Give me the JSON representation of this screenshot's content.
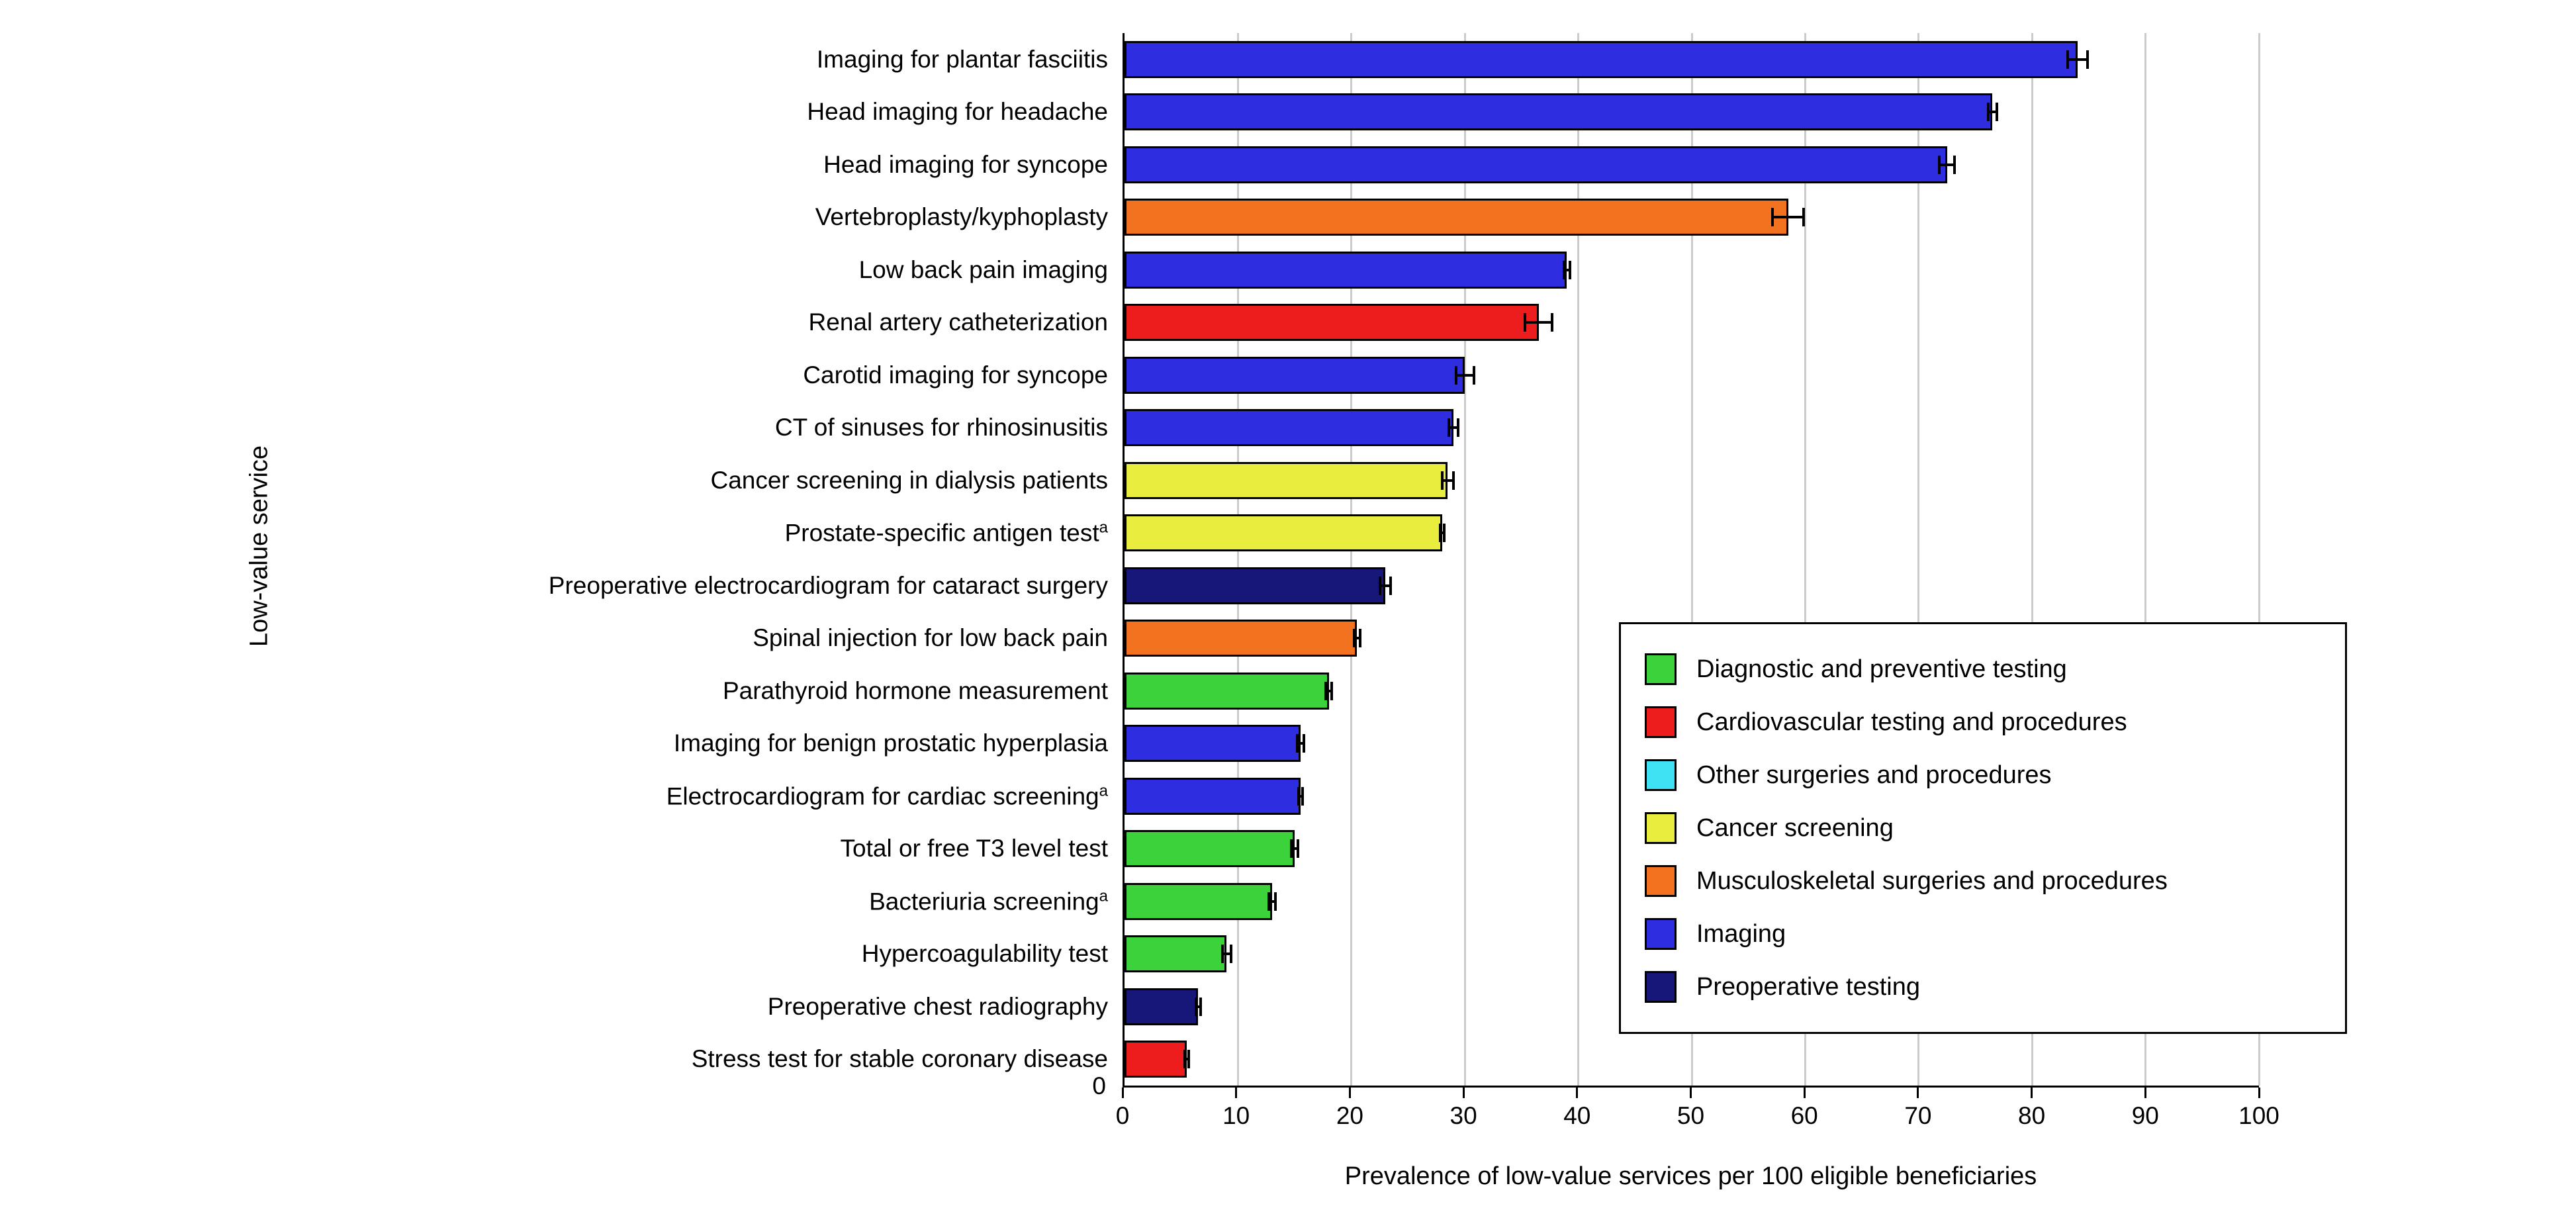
{
  "axis": {
    "origin_y_label": "0"
  },
  "chart_data": {
    "type": "bar",
    "orientation": "horizontal",
    "title": "",
    "xlabel": "Prevalence of low-value services per 100 eligible beneficiaries",
    "ylabel": "Low-value service",
    "xlim": [
      0,
      100
    ],
    "xticks": [
      0,
      10,
      20,
      30,
      40,
      50,
      60,
      70,
      80,
      90,
      100
    ],
    "grid": true,
    "legend_position": "inside-lower-right",
    "groups": [
      {
        "name": "Diagnostic and preventive testing",
        "color": "#3bd23b"
      },
      {
        "name": "Cardiovascular testing and procedures",
        "color": "#ee1d1d"
      },
      {
        "name": "Other surgeries and procedures",
        "color": "#3fe2f2"
      },
      {
        "name": "Cancer screening",
        "color": "#e9ee3e"
      },
      {
        "name": "Musculoskeletal surgeries and procedures",
        "color": "#f2721f"
      },
      {
        "name": "Imaging",
        "color": "#2e2ee0"
      },
      {
        "name": "Preoperative testing",
        "color": "#17177a"
      }
    ],
    "bars": [
      {
        "label": "Imaging for plantar fasciitis",
        "sup": "",
        "value": 84.0,
        "error": 1.0,
        "group": "Imaging"
      },
      {
        "label": "Head imaging for headache",
        "sup": "",
        "value": 76.5,
        "error": 0.5,
        "group": "Imaging"
      },
      {
        "label": "Head imaging for syncope",
        "sup": "",
        "value": 72.5,
        "error": 0.8,
        "group": "Imaging"
      },
      {
        "label": "Vertebroplasty/kyphoplasty",
        "sup": "",
        "value": 58.5,
        "error": 1.5,
        "group": "Musculoskeletal surgeries and procedures"
      },
      {
        "label": "Low back pain imaging",
        "sup": "",
        "value": 39.0,
        "error": 0.4,
        "group": "Imaging"
      },
      {
        "label": "Renal artery catheterization",
        "sup": "",
        "value": 36.5,
        "error": 1.3,
        "group": "Cardiovascular testing and procedures"
      },
      {
        "label": "Carotid imaging for syncope",
        "sup": "",
        "value": 30.0,
        "error": 0.9,
        "group": "Imaging"
      },
      {
        "label": "CT of sinuses for rhinosinusitis",
        "sup": "",
        "value": 29.0,
        "error": 0.5,
        "group": "Imaging"
      },
      {
        "label": "Cancer screening in dialysis patients",
        "sup": "",
        "value": 28.5,
        "error": 0.6,
        "group": "Cancer screening"
      },
      {
        "label": "Prostate-specific antigen test",
        "sup": "a",
        "value": 28.0,
        "error": 0.3,
        "group": "Cancer screening"
      },
      {
        "label": "Preoperative electrocardiogram for cataract surgery",
        "sup": "",
        "value": 23.0,
        "error": 0.6,
        "group": "Preoperative testing"
      },
      {
        "label": "Spinal injection for low back pain",
        "sup": "",
        "value": 20.5,
        "error": 0.4,
        "group": "Musculoskeletal surgeries and procedures"
      },
      {
        "label": "Parathyroid hormone measurement",
        "sup": "",
        "value": 18.0,
        "error": 0.4,
        "group": "Diagnostic and preventive testing"
      },
      {
        "label": "Imaging for benign prostatic hyperplasia",
        "sup": "",
        "value": 15.5,
        "error": 0.4,
        "group": "Imaging"
      },
      {
        "label": "Electrocardiogram for cardiac screening",
        "sup": "a",
        "value": 15.5,
        "error": 0.3,
        "group": "Imaging"
      },
      {
        "label": "Total or free T3 level test",
        "sup": "",
        "value": 15.0,
        "error": 0.4,
        "group": "Diagnostic and preventive testing"
      },
      {
        "label": "Bacteriuria screening",
        "sup": "a",
        "value": 13.0,
        "error": 0.4,
        "group": "Diagnostic and preventive testing"
      },
      {
        "label": "Hypercoagulability test",
        "sup": "",
        "value": 9.0,
        "error": 0.5,
        "group": "Diagnostic and preventive testing"
      },
      {
        "label": "Preoperative chest radiography",
        "sup": "",
        "value": 6.5,
        "error": 0.3,
        "group": "Preoperative testing"
      },
      {
        "label": "Stress test for stable coronary disease",
        "sup": "",
        "value": 5.5,
        "error": 0.3,
        "group": "Cardiovascular testing and procedures"
      }
    ]
  }
}
